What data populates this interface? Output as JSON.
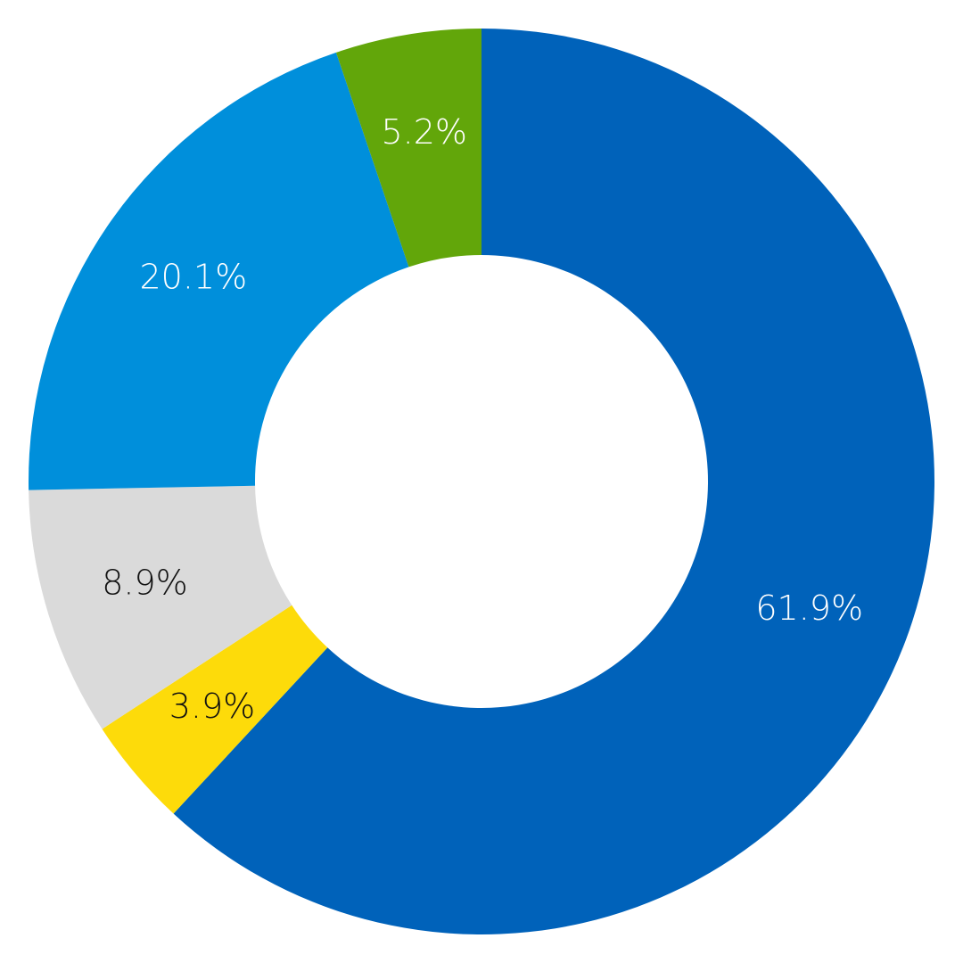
{
  "chart_data": {
    "type": "pie",
    "variant": "donut",
    "start_angle_deg": 0,
    "direction": "clockwise",
    "slices": [
      {
        "value": 61.9,
        "label": "61.9%",
        "color": "#0062BA",
        "label_color": "#ffffff"
      },
      {
        "value": 3.9,
        "label": "3.9%",
        "color": "#FDDB0A",
        "label_color": "#111111"
      },
      {
        "value": 8.9,
        "label": "8.9%",
        "color": "#DADADA",
        "label_color": "#111111"
      },
      {
        "value": 20.1,
        "label": "20.1%",
        "color": "#008FDB",
        "label_color": "#ffffff"
      },
      {
        "value": 5.2,
        "label": "5.2%",
        "color": "#62A60A",
        "label_color": "#ffffff"
      }
    ]
  }
}
